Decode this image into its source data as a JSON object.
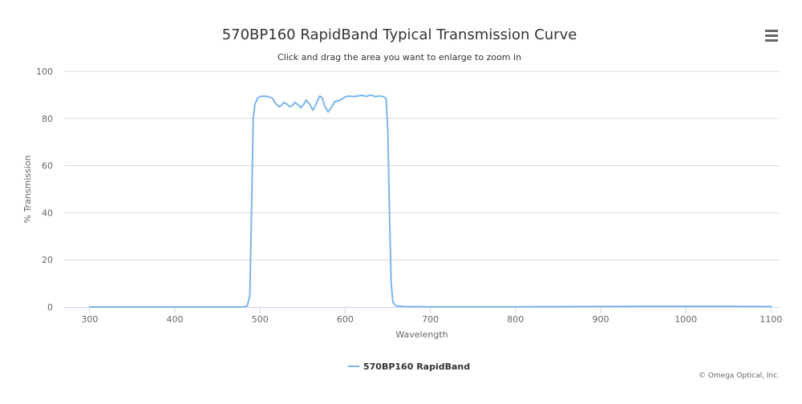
{
  "chart_data": {
    "type": "line",
    "title": "570BP160 RapidBand Typical Transmission Curve",
    "subtitle": "Click and drag the area you want to enlarge to zoom in",
    "xlabel": "Wavelength",
    "ylabel": "% Transmission",
    "xlim": [
      270,
      1110
    ],
    "ylim": [
      0,
      100
    ],
    "x_ticks": [
      "300",
      "400",
      "500",
      "600",
      "700",
      "800",
      "900",
      "1000",
      "1100"
    ],
    "y_ticks": [
      "0",
      "20",
      "40",
      "60",
      "80",
      "100"
    ],
    "grid": "horizontal",
    "legend": "bottom-center",
    "series": [
      {
        "name": "570BP160 RapidBand",
        "color": "#7cb5ec",
        "points": [
          [
            300,
            0
          ],
          [
            400,
            0
          ],
          [
            480,
            0
          ],
          [
            485,
            0.5
          ],
          [
            488,
            5
          ],
          [
            490,
            40
          ],
          [
            492,
            80
          ],
          [
            494,
            86
          ],
          [
            497,
            88.5
          ],
          [
            500,
            89.3
          ],
          [
            505,
            89.5
          ],
          [
            510,
            89.2
          ],
          [
            515,
            88.5
          ],
          [
            518,
            86.5
          ],
          [
            522,
            85
          ],
          [
            525,
            85.5
          ],
          [
            528,
            86.8
          ],
          [
            531,
            86.2
          ],
          [
            535,
            85
          ],
          [
            538,
            85.5
          ],
          [
            541,
            86.8
          ],
          [
            544,
            86
          ],
          [
            548,
            84.6
          ],
          [
            551,
            85.8
          ],
          [
            554,
            87.8
          ],
          [
            558,
            86.2
          ],
          [
            562,
            83.5
          ],
          [
            566,
            86.2
          ],
          [
            570,
            89.5
          ],
          [
            573,
            88.8
          ],
          [
            576,
            85.3
          ],
          [
            580,
            82.8
          ],
          [
            584,
            84.8
          ],
          [
            588,
            87.2
          ],
          [
            592,
            87.5
          ],
          [
            596,
            88.2
          ],
          [
            600,
            89.2
          ],
          [
            605,
            89.5
          ],
          [
            610,
            89.3
          ],
          [
            615,
            89.6
          ],
          [
            620,
            89.8
          ],
          [
            625,
            89.4
          ],
          [
            630,
            90
          ],
          [
            635,
            89.3
          ],
          [
            640,
            89.6
          ],
          [
            645,
            89.2
          ],
          [
            648,
            88.5
          ],
          [
            650,
            75
          ],
          [
            652,
            40
          ],
          [
            654,
            10
          ],
          [
            656,
            2
          ],
          [
            660,
            0.4
          ],
          [
            670,
            0.2
          ],
          [
            700,
            0.1
          ],
          [
            800,
            0.1
          ],
          [
            880,
            0.2
          ],
          [
            950,
            0.3
          ],
          [
            1000,
            0.3
          ],
          [
            1050,
            0.3
          ],
          [
            1100,
            0.2
          ]
        ]
      }
    ]
  },
  "credit": "© Omega Optical, Inc."
}
